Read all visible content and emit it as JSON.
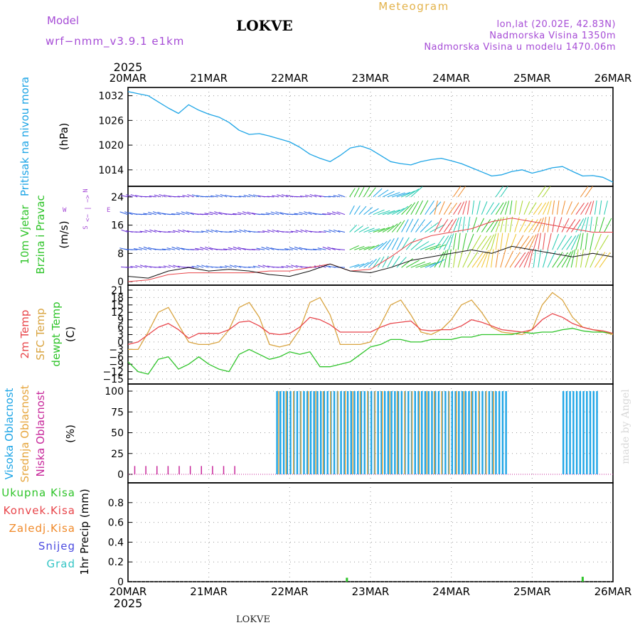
{
  "header": {
    "model_label": "Model",
    "model_name": "wrf−nmm_v3.9.1  e1km",
    "station": "LOKVE",
    "meteogram": "Meteogram",
    "lonlat": "lon,lat (20.02E, 42.83N)",
    "altitude": "Nadmorska Visina 1350m",
    "model_altitude": "Nadmorska Visina u modelu 1470.06m",
    "year": "2025",
    "footer_station": "LOKVE",
    "watermark": "made by Angel"
  },
  "x_axis": {
    "ticks": [
      "20MAR",
      "21MAR",
      "22MAR",
      "23MAR",
      "24MAR",
      "25MAR",
      "26MAR"
    ],
    "range_hours": [
      0,
      144
    ]
  },
  "panels": {
    "pressure": {
      "label1": "Pritisak na nivou mora",
      "unit": "(hPa)",
      "ticks": [
        "1032",
        "1026",
        "1020",
        "1014"
      ]
    },
    "wind": {
      "label1": "10m Vjetar",
      "label2": "Brzina i Pravac",
      "unit": "(m/s)",
      "ticks": [
        "24",
        "16",
        "8",
        "0"
      ],
      "compass": {
        "n": "N",
        "s": "S",
        "e": "E",
        "w": "W",
        "arrows": "<− | −>"
      }
    },
    "temp": {
      "label1": "2m Temp",
      "label2": "SFC Temp",
      "label3": "dewpt Temp",
      "unit": "(C)",
      "ticks": [
        "21",
        "18",
        "15",
        "12",
        "9",
        "6",
        "3",
        "0",
        "−3",
        "−6",
        "−9",
        "−12",
        "−15"
      ]
    },
    "cloud": {
      "label1": "Visoka Oblacnost",
      "label2": "Srednja Oblacnost",
      "label3": "Niska Oblacnost",
      "unit": "(%)",
      "ticks": [
        "100",
        "75",
        "50",
        "25",
        "0"
      ]
    },
    "precip": {
      "labels": [
        "Ukupna Kisa",
        "Konvek.Kisa",
        "Zaledj.Kisa",
        "Snijeg",
        "Grad"
      ],
      "unit": "1hr Precip (mm)",
      "ticks": [
        "0.8",
        "0.6",
        "0.4",
        "0.2",
        "0"
      ]
    }
  },
  "colors": {
    "pressure": "#1ea5e6",
    "temp2m": "#e8454a",
    "sfc": "#d9a440",
    "dewpt": "#2fc42a",
    "high_cloud": "#1ea5e6",
    "mid_cloud": "#e6a53c",
    "low_cloud": "#c8289b",
    "total_rain": "#2fc42a",
    "conv_rain": "#e8454a",
    "frz_rain": "#f08a2a",
    "snow": "#4a4ae0",
    "hail": "#33c4c4",
    "model_text": "#a64cd6",
    "meteogram_text": "#e3b24a",
    "wind_speed": "#111111",
    "wind_gust": "#e8454a"
  },
  "chart_data": [
    {
      "type": "line",
      "title": "Pritisak na nivou mora",
      "ylabel": "(hPa)",
      "ylim": [
        1010,
        1034
      ],
      "x_hours": [
        0,
        3,
        6,
        9,
        12,
        15,
        18,
        21,
        24,
        27,
        30,
        33,
        36,
        39,
        42,
        45,
        48,
        51,
        54,
        57,
        60,
        63,
        66,
        69,
        72,
        75,
        78,
        81,
        84,
        87,
        90,
        93,
        96,
        99,
        102,
        105,
        108,
        111,
        114,
        117,
        120,
        123,
        126,
        129,
        132,
        135,
        138,
        141,
        144
      ],
      "series": [
        {
          "values": [
            1033,
            1032.5,
            1032,
            1030.5,
            1029,
            1027.7,
            1029.8,
            1028.5,
            1027.5,
            1026.8,
            1025.5,
            1023.6,
            1022.6,
            1022.8,
            1022.2,
            1021.5,
            1020.8,
            1019.5,
            1017.8,
            1016.8,
            1016,
            1017.5,
            1019.3,
            1019.8,
            1019,
            1017.5,
            1016,
            1015.5,
            1015.2,
            1016,
            1016.5,
            1016.8,
            1016.2,
            1015.5,
            1014.5,
            1013.5,
            1012.5,
            1012.8,
            1013.6,
            1014,
            1013.2,
            1013.8,
            1014.5,
            1014.8,
            1013.6,
            1012.5,
            1012.6,
            1012.2,
            1011
          ]
        }
      ]
    },
    {
      "type": "line",
      "title": "2m Temp / SFC Temp / dewpt Temp",
      "ylabel": "(C)",
      "ylim": [
        -15,
        21
      ],
      "x_hours": [
        0,
        3,
        6,
        9,
        12,
        15,
        18,
        21,
        24,
        27,
        30,
        33,
        36,
        39,
        42,
        45,
        48,
        51,
        54,
        57,
        60,
        63,
        66,
        69,
        72,
        75,
        78,
        81,
        84,
        87,
        90,
        93,
        96,
        99,
        102,
        105,
        108,
        111,
        114,
        117,
        120,
        123,
        126,
        129,
        132,
        135,
        138,
        141,
        144
      ],
      "series": [
        {
          "name": "2m Temp",
          "values": [
            -1,
            0,
            3,
            6,
            7.5,
            5,
            1.5,
            3.5,
            3.5,
            3.5,
            5,
            8,
            8.5,
            6.5,
            3.5,
            3,
            3.5,
            6,
            10,
            9,
            7,
            4,
            4,
            4,
            4,
            6,
            7.5,
            8,
            8.5,
            5,
            4.5,
            5,
            5,
            6.5,
            9,
            8,
            6.5,
            5,
            4.5,
            4,
            5,
            9,
            11.5,
            10,
            7.5,
            6,
            5,
            4.5,
            3.5
          ]
        },
        {
          "name": "SFC Temp",
          "values": [
            -3,
            -3,
            4,
            12,
            14,
            7,
            0,
            -1,
            -1,
            0,
            5,
            14,
            16,
            10,
            -1,
            -2,
            -1,
            5,
            16,
            18,
            11,
            -1,
            -1,
            -1,
            0,
            7,
            15,
            17,
            11,
            4,
            3,
            5,
            9,
            15,
            17,
            12,
            6,
            4,
            3.5,
            3,
            5,
            15,
            20,
            17,
            10,
            6,
            5,
            4,
            3
          ]
        },
        {
          "name": "dewpt Temp",
          "values": [
            -8,
            -12,
            -13,
            -7,
            -6,
            -11,
            -9,
            -6,
            -9,
            -11,
            -12,
            -5,
            -3,
            -5,
            -7,
            -6,
            -4,
            -5,
            -4,
            -10,
            -10,
            -9,
            -8,
            -5,
            -2,
            -1,
            1,
            1,
            0,
            0,
            1,
            1,
            1,
            2,
            2,
            3,
            3,
            3,
            3,
            4,
            3.5,
            4,
            4,
            5,
            5.5,
            4.5,
            4,
            4,
            3.5
          ]
        }
      ]
    },
    {
      "type": "line",
      "title": "10m Vjetar Brzina i Pravac",
      "ylabel": "(m/s)",
      "ylim": [
        -1,
        27
      ],
      "x_hours": [
        0,
        6,
        12,
        18,
        24,
        30,
        36,
        42,
        48,
        54,
        60,
        66,
        72,
        78,
        84,
        90,
        96,
        102,
        108,
        114,
        120,
        126,
        132,
        138,
        144
      ],
      "series": [
        {
          "name": "speed",
          "values": [
            1.5,
            1,
            3,
            4,
            3,
            3.5,
            3,
            2,
            1.5,
            3,
            5,
            3,
            2.5,
            4,
            6,
            7,
            8,
            9,
            8,
            10,
            9,
            8,
            7,
            8,
            7
          ]
        },
        {
          "name": "gust",
          "values": [
            0,
            0.5,
            2,
            2.5,
            2.5,
            2.5,
            2.5,
            3,
            3,
            4,
            5,
            3,
            3.5,
            7,
            11,
            13,
            14,
            15,
            17,
            18,
            17,
            16,
            15,
            14,
            14
          ]
        }
      ]
    },
    {
      "type": "bar",
      "title": "Visoka / Srednja / Niska Oblacnost",
      "ylabel": "(%)",
      "ylim": [
        0,
        100
      ],
      "series": [
        {
          "name": "Visoka Oblacnost",
          "ranges_hours": [
            [
              44,
              112
            ],
            [
              129,
              139
            ]
          ],
          "values": [
            100,
            100
          ]
        },
        {
          "name": "Srednja Oblacnost",
          "ranges_hours": [
            [
              44,
              110
            ]
          ],
          "values": [
            100
          ]
        },
        {
          "name": "Niska Oblacnost",
          "ranges_hours": [
            [
              2,
              34
            ]
          ],
          "values": [
            10
          ]
        }
      ]
    },
    {
      "type": "bar",
      "title": "1hr Precip",
      "ylabel": "1hr Precip (mm)",
      "ylim": [
        0,
        1
      ],
      "x_hours": [
        65,
        135
      ],
      "series": [
        {
          "name": "Ukupna Kisa",
          "values": [
            0.04,
            0.05
          ]
        }
      ]
    }
  ]
}
